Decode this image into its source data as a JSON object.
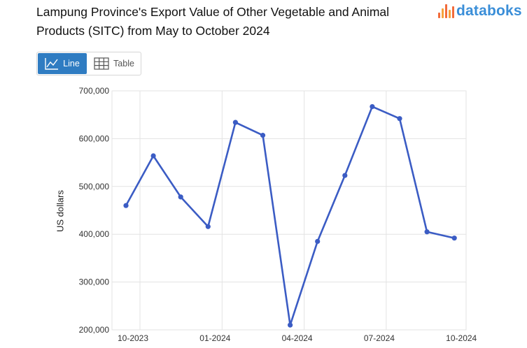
{
  "title": "Lampung Province's Export Value of Other Vegetable and Animal Products (SITC) from May to October 2024",
  "logo": {
    "text": "databoks",
    "icon": "databoks-bars-icon"
  },
  "view_toggle": {
    "line_label": "Line",
    "table_label": "Table",
    "selected": "Line"
  },
  "colors": {
    "line": "#3b5cc4",
    "accent": "#2f7cc2",
    "grid": "#e3e3e3",
    "logo": "#3a8ed8"
  },
  "chart_data": {
    "type": "line",
    "title": "Lampung Province's Export Value of Other Vegetable and Animal Products (SITC) from May to October 2024",
    "ylabel": "US dollars",
    "xlabel": "",
    "ylim": [
      200000,
      700000
    ],
    "yticks": [
      "200,000",
      "300,000",
      "400,000",
      "500,000",
      "600,000",
      "700,000"
    ],
    "xticks": [
      "10-2023",
      "01-2024",
      "04-2024",
      "07-2024",
      "10-2024"
    ],
    "grid": true,
    "x": [
      "10-2023",
      "11-2023",
      "12-2023",
      "01-2024",
      "02-2024",
      "03-2024",
      "04-2024",
      "05-2024",
      "06-2024",
      "07-2024",
      "08-2024",
      "09-2024",
      "10-2024"
    ],
    "series": [
      {
        "values": [
          460000,
          564000,
          478000,
          416000,
          634000,
          607000,
          210000,
          385000,
          523000,
          667000,
          642000,
          405000,
          392000
        ]
      }
    ]
  }
}
